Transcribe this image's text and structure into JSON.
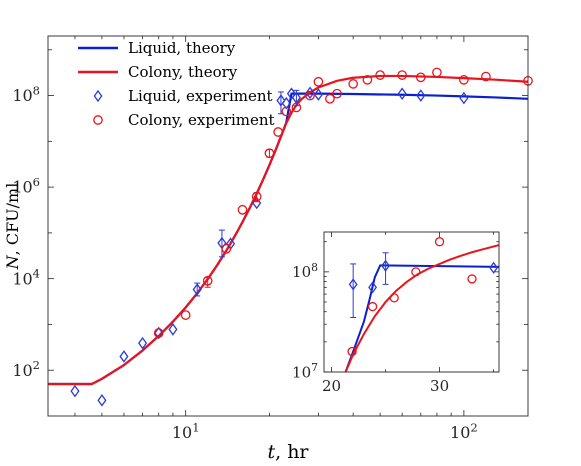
{
  "chart_data": [
    {
      "type": "line",
      "panel": "main",
      "xscale": "log",
      "yscale": "log",
      "xlim": [
        3.2,
        170
      ],
      "ylim": [
        10,
        2000000000
      ],
      "xticks": [
        10,
        100
      ],
      "xtick_labels": [
        [
          "10",
          "1"
        ],
        [
          "10",
          "2"
        ]
      ],
      "yticks": [
        100,
        10000,
        1000000,
        100000000
      ],
      "ytick_labels": [
        [
          "10",
          "2"
        ],
        [
          "10",
          "4"
        ],
        [
          "10",
          "6"
        ],
        [
          "10",
          "8"
        ]
      ],
      "xlabel": {
        "var": "t",
        "text": ", hr"
      },
      "ylabel": {
        "var": "N",
        "text": ", CFU/ml"
      },
      "grid": false,
      "legend_position": "top-left",
      "legend": [
        {
          "label": "Liquid, theory",
          "kind": "line",
          "color": "#0a1fd0"
        },
        {
          "label": "Colony, theory",
          "kind": "line",
          "color": "#e8141c"
        },
        {
          "label": "Liquid, experiment",
          "kind": "diamond",
          "color": "#2a3ad8"
        },
        {
          "label": "Colony, experiment",
          "kind": "circle",
          "color": "#e8141c"
        }
      ],
      "series": [
        {
          "name": "Liquid, theory",
          "color": "#0a1fd0",
          "x": [
            3.2,
            4.6,
            5,
            6,
            7,
            8,
            9,
            10,
            11,
            12,
            13,
            14,
            15,
            16,
            17,
            18,
            19,
            20,
            21,
            22,
            23,
            24,
            30,
            40,
            60,
            80,
            100,
            130,
            170
          ],
          "y": [
            50,
            50,
            65,
            130,
            270,
            560,
            1150,
            2350,
            4800,
            9800,
            20000,
            41000,
            84000,
            172000,
            352000,
            720000,
            1480000,
            3030000,
            6200000,
            12700000,
            26000000,
            110000000,
            110000000,
            108000000,
            104000000,
            100000000,
            96000000,
            91000000,
            85000000
          ]
        },
        {
          "name": "Colony, theory",
          "color": "#e8141c",
          "x": [
            3.2,
            4.6,
            5,
            6,
            7,
            8,
            9,
            10,
            11,
            12,
            13,
            14,
            15,
            16,
            17,
            18,
            19,
            20,
            21,
            22,
            23,
            24,
            25,
            26,
            28,
            30,
            35,
            40,
            50,
            60,
            80,
            100,
            130,
            170
          ],
          "y": [
            50,
            50,
            65,
            130,
            270,
            560,
            1150,
            2350,
            4800,
            9800,
            20000,
            41000,
            84000,
            172000,
            352000,
            720000,
            1480000,
            3030000,
            6200000,
            12700000,
            25000000,
            42000000,
            62000000,
            82000000,
            118000000,
            150000000,
            210000000,
            245000000,
            268000000,
            268000000,
            255000000,
            240000000,
            222000000,
            200000000
          ]
        },
        {
          "name": "Liquid, experiment",
          "marker": "diamond",
          "color": "#2a3ad8",
          "x": [
            4.0,
            5.0,
            6.0,
            7.0,
            8.0,
            9.0,
            11.0,
            13.5,
            14.5,
            18.0,
            22.0,
            23.0,
            24.0,
            25.0,
            28.0,
            30.0,
            60.0,
            70.0,
            100.0
          ],
          "y": [
            35,
            22,
            200,
            390,
            650,
            780,
            5800,
            60000,
            58000,
            450000,
            78000000,
            68000000,
            110000000,
            90000000,
            115000000,
            105000000,
            110000000,
            100000000,
            88000000
          ],
          "err_low": [
            null,
            null,
            null,
            null,
            null,
            null,
            4200,
            30000,
            null,
            null,
            40000000,
            null,
            null,
            60000000,
            null,
            null,
            null,
            null,
            null
          ],
          "err_high": [
            null,
            null,
            null,
            null,
            null,
            null,
            8000,
            115000,
            null,
            null,
            120000000,
            null,
            null,
            130000000,
            null,
            null,
            null,
            null,
            null
          ]
        },
        {
          "name": "Colony, experiment",
          "marker": "circle",
          "color": "#e8141c",
          "x": [
            8.0,
            10.0,
            12.0,
            14.0,
            16.0,
            18.0,
            20.0,
            21.5,
            23.0,
            25.0,
            28.0,
            30.0,
            33.0,
            35.0,
            40.0,
            45.0,
            50.0,
            60.0,
            70.0,
            80.0,
            100.0,
            120.0,
            170.0
          ],
          "y": [
            650,
            1600,
            9000,
            45000,
            320000,
            620000,
            5500000,
            16000000,
            45000000,
            55000000,
            100000000,
            200000000,
            85000000,
            110000000,
            180000000,
            220000000,
            280000000,
            280000000,
            250000000,
            320000000,
            220000000,
            260000000,
            210000000
          ],
          "err_low": [
            null,
            null,
            6500,
            null,
            null,
            480000,
            4500000,
            null,
            null,
            null,
            null,
            null,
            null,
            null,
            null,
            null,
            null,
            null,
            null,
            null,
            null,
            null,
            null
          ],
          "err_high": [
            null,
            null,
            10500,
            null,
            null,
            760000,
            6600000,
            null,
            null,
            null,
            null,
            null,
            null,
            null,
            null,
            null,
            null,
            null,
            null,
            null,
            null,
            null,
            null
          ]
        }
      ]
    },
    {
      "type": "line",
      "panel": "inset",
      "xscale": "linear",
      "yscale": "log",
      "xlim": [
        19.3,
        35.5
      ],
      "ylim": [
        10000000,
        250000000
      ],
      "xticks": [
        20,
        30
      ],
      "xtick_labels": [
        "20",
        "30"
      ],
      "yticks": [
        10000000,
        100000000
      ],
      "ytick_labels": [
        [
          "10",
          "7"
        ],
        [
          "10",
          "8"
        ]
      ],
      "grid": false,
      "series": [
        {
          "name": "Liquid, theory",
          "color": "#0a1fd0",
          "x": [
            21.3,
            22,
            23,
            23.5,
            24,
            24.5,
            35.5
          ],
          "y": [
            10000000,
            16000000,
            32000000,
            52000000,
            88000000,
            116000000,
            112000000
          ]
        },
        {
          "name": "Colony, theory",
          "color": "#e8141c",
          "x": [
            21.3,
            22,
            23,
            24,
            25,
            26,
            27,
            28,
            29,
            30,
            31,
            32,
            33,
            34,
            35.5
          ],
          "y": [
            10000000,
            15000000,
            24000000,
            36000000,
            50000000,
            65000000,
            80000000,
            95000000,
            108000000,
            120000000,
            133000000,
            145000000,
            157000000,
            168000000,
            185000000
          ]
        },
        {
          "name": "Liquid, experiment",
          "marker": "diamond",
          "color": "#2a3ad8",
          "x": [
            22.0,
            23.8,
            25.0,
            35.0
          ],
          "y": [
            75000000,
            70000000,
            115000000,
            110000000
          ],
          "err_low": [
            35000000,
            null,
            75000000,
            null
          ],
          "err_high": [
            120000000,
            null,
            155000000,
            null
          ]
        },
        {
          "name": "Colony, experiment",
          "marker": "circle",
          "color": "#e8141c",
          "x": [
            21.9,
            23.8,
            25.8,
            27.8,
            30.0,
            33.0
          ],
          "y": [
            16000000,
            45000000,
            55000000,
            100000000,
            200000000,
            85000000
          ],
          "err_low": [
            null,
            null,
            null,
            null,
            null,
            null
          ],
          "err_high": [
            null,
            null,
            null,
            null,
            null,
            null
          ]
        }
      ]
    }
  ]
}
